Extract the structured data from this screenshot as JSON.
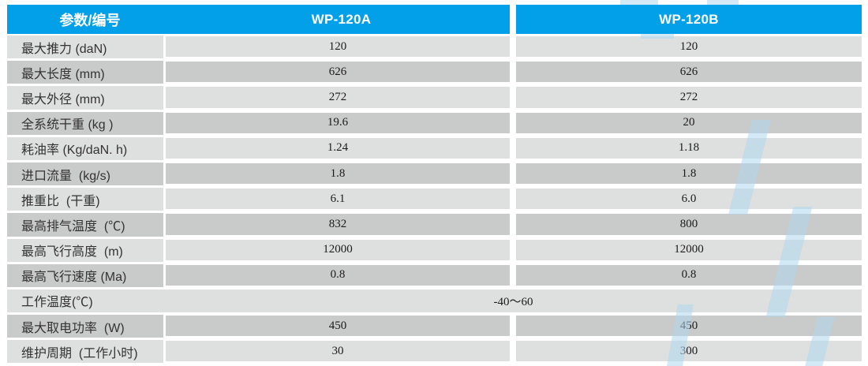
{
  "colors": {
    "header_blue": "#02a0e8",
    "row_light": "#dedfdf",
    "row_dark": "#c9caca",
    "header_text": "#ffffff",
    "label_text": "#333333",
    "value_text": "#1b1b1b",
    "watermark_blue": "#aed7ef"
  },
  "table": {
    "header": {
      "param_label": "参数/编号",
      "col_a": "WP-120A",
      "col_b": "WP-120B"
    },
    "rows": [
      {
        "label": "最大推力 (daN)",
        "a": "120",
        "b": "120"
      },
      {
        "label": "最大长度 (mm)",
        "a": "626",
        "b": "626"
      },
      {
        "label": "最大外径 (mm)",
        "a": "272",
        "b": "272"
      },
      {
        "label": "全系统干重 (kg )",
        "a": "19.6",
        "b": "20"
      },
      {
        "label": "耗油率 (Kg/daN. h)",
        "a": "1.24",
        "b": "1.18"
      },
      {
        "label": "进口流量  (kg/s)",
        "a": "1.8",
        "b": "1.8"
      },
      {
        "label": "推重比  (干重)",
        "a": "6.1",
        "b": "6.0"
      },
      {
        "label": "最高排气温度  (℃)",
        "a": "832",
        "b": "800"
      },
      {
        "label": "最高飞行高度  (m)",
        "a": "12000",
        "b": "12000"
      },
      {
        "label": "最高飞行速度 (Ma)",
        "a": "0.8",
        "b": "0.8"
      },
      {
        "label": "工作温度(℃)",
        "merged": "-40～60"
      },
      {
        "label": "最大取电功率  (W)",
        "a": "450",
        "b": "450"
      },
      {
        "label": "维护周期  (工作小时)",
        "a": "30",
        "b": "300"
      }
    ]
  }
}
